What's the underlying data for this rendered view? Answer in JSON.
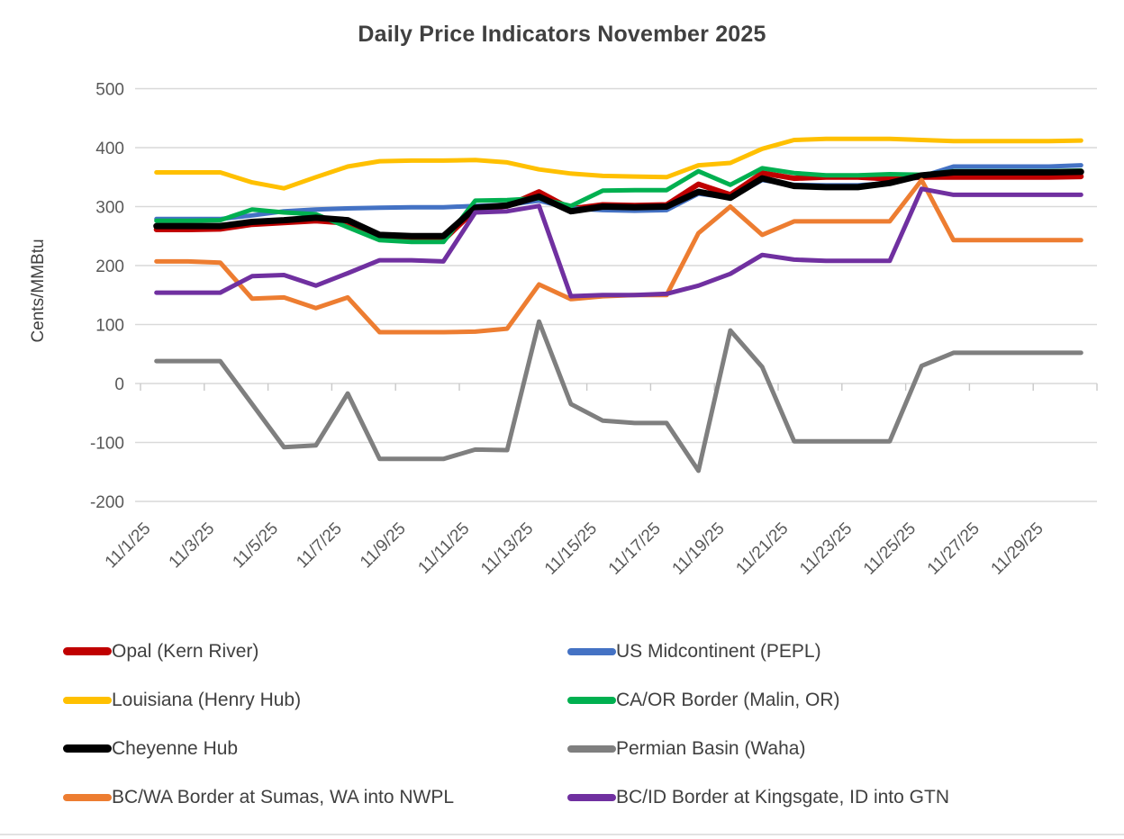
{
  "title": "Daily Price Indicators November 2025",
  "y_axis": {
    "label": "Cents/MMBtu",
    "ticks": [
      500,
      400,
      300,
      200,
      100,
      0,
      -100,
      -200
    ]
  },
  "x_axis": {
    "tick_labels": [
      "11/1/25",
      "11/3/25",
      "11/5/25",
      "11/7/25",
      "11/9/25",
      "11/11/25",
      "11/13/25",
      "11/15/25",
      "11/17/25",
      "11/19/25",
      "11/21/25",
      "11/23/25",
      "11/25/25",
      "11/27/25",
      "11/29/25"
    ]
  },
  "chart_data": {
    "type": "line",
    "title": "Daily Price Indicators November 2025",
    "xlabel": "",
    "ylabel": "Cents/MMBtu",
    "ylim": [
      -200,
      500
    ],
    "grid": true,
    "legend_position": "bottom",
    "x": [
      "11/1/25",
      "11/2/25",
      "11/3/25",
      "11/4/25",
      "11/5/25",
      "11/6/25",
      "11/7/25",
      "11/8/25",
      "11/9/25",
      "11/10/25",
      "11/11/25",
      "11/12/25",
      "11/13/25",
      "11/14/25",
      "11/15/25",
      "11/16/25",
      "11/17/25",
      "11/18/25",
      "11/19/25",
      "11/20/25",
      "11/21/25",
      "11/22/25",
      "11/23/25",
      "11/24/25",
      "11/25/25",
      "11/26/25",
      "11/27/25",
      "11/28/25",
      "11/29/25",
      "11/30/25"
    ],
    "series": [
      {
        "name": "Opal (Kern River)",
        "color": "#C00000",
        "line_width": 6,
        "values": [
          261,
          261,
          262,
          270,
          273,
          276,
          272,
          246,
          243,
          243,
          295,
          301,
          325,
          296,
          303,
          302,
          303,
          338,
          320,
          357,
          348,
          350,
          350,
          347,
          350,
          350,
          350,
          350,
          350,
          351
        ]
      },
      {
        "name": "US Midcontinent (PEPL)",
        "color": "#4472C4",
        "line_width": 5,
        "values": [
          279,
          279,
          279,
          285,
          292,
          295,
          297,
          298,
          299,
          299,
          301,
          303,
          310,
          297,
          294,
          293,
          294,
          322,
          315,
          345,
          337,
          336,
          336,
          340,
          351,
          368,
          368,
          368,
          368,
          370
        ]
      },
      {
        "name": "Louisiana (Henry Hub)",
        "color": "#FFC000",
        "line_width": 5,
        "values": [
          358,
          358,
          358,
          341,
          331,
          350,
          368,
          377,
          378,
          378,
          379,
          375,
          363,
          356,
          352,
          351,
          350,
          370,
          374,
          398,
          413,
          415,
          415,
          415,
          413,
          411,
          411,
          411,
          411,
          412
        ]
      },
      {
        "name": "CA/OR Border (Malin, OR)",
        "color": "#00B050",
        "line_width": 5,
        "values": [
          276,
          276,
          277,
          295,
          290,
          287,
          265,
          243,
          240,
          240,
          310,
          311,
          314,
          301,
          327,
          328,
          328,
          360,
          337,
          365,
          357,
          353,
          353,
          355,
          354,
          360,
          360,
          360,
          360,
          361
        ]
      },
      {
        "name": "Cheyenne Hub",
        "color": "#000000",
        "line_width": 7,
        "values": [
          267,
          267,
          267,
          274,
          277,
          281,
          277,
          252,
          250,
          250,
          298,
          302,
          317,
          292,
          300,
          299,
          300,
          325,
          315,
          348,
          335,
          333,
          333,
          340,
          353,
          358,
          358,
          358,
          358,
          359
        ]
      },
      {
        "name": "Permian Basin (Waha)",
        "color": "#7F7F7F",
        "line_width": 5,
        "values": [
          38,
          38,
          38,
          -35,
          -108,
          -105,
          -17,
          -128,
          -128,
          -128,
          -112,
          -113,
          105,
          -35,
          -63,
          -67,
          -67,
          -148,
          90,
          28,
          -98,
          -98,
          -98,
          -98,
          30,
          52,
          52,
          52,
          52,
          52
        ]
      },
      {
        "name": "BC/WA Border at Sumas, WA into NWPL",
        "color": "#ED7D31",
        "line_width": 5,
        "values": [
          207,
          207,
          205,
          144,
          146,
          128,
          146,
          87,
          87,
          87,
          88,
          93,
          168,
          143,
          148,
          150,
          150,
          255,
          300,
          252,
          275,
          275,
          275,
          275,
          345,
          243,
          243,
          243,
          243,
          243
        ]
      },
      {
        "name": "BC/ID Border at Kingsgate, ID into GTN",
        "color": "#7030A0",
        "line_width": 5,
        "values": [
          154,
          154,
          154,
          182,
          184,
          166,
          187,
          209,
          209,
          207,
          290,
          292,
          301,
          148,
          150,
          150,
          152,
          166,
          186,
          218,
          210,
          208,
          208,
          208,
          330,
          320,
          320,
          320,
          320,
          320
        ]
      }
    ]
  }
}
